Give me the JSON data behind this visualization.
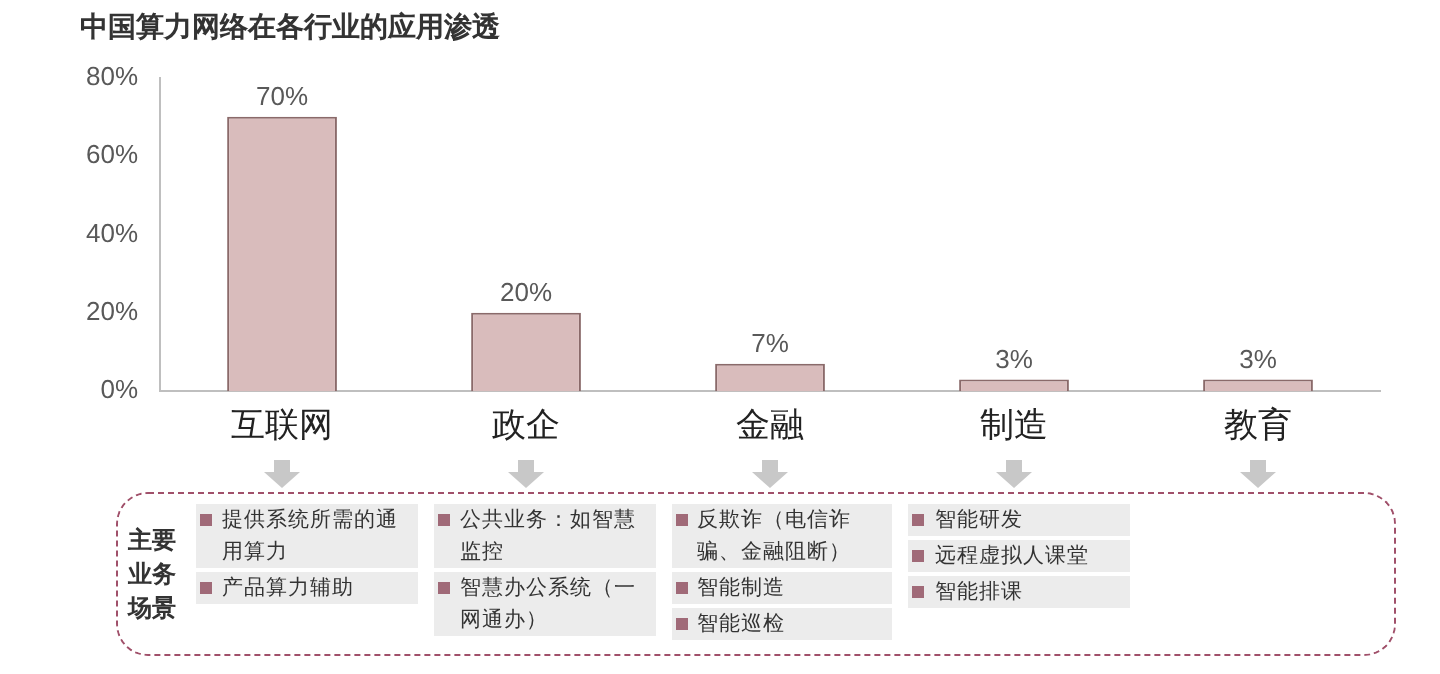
{
  "chart_data": {
    "type": "bar",
    "title": "中国算力网络在各行业的应用渗透",
    "categories": [
      "互联网",
      "政企",
      "金融",
      "制造",
      "教育"
    ],
    "values": [
      70,
      20,
      7,
      3,
      3
    ],
    "color": "#d9bcbc",
    "value_labels": [
      "70%",
      "20%",
      "7%",
      "3%",
      "3%"
    ],
    "ylim": [
      0,
      80
    ],
    "yticks": [
      {
        "value": 0,
        "label": "0%"
      },
      {
        "value": 20,
        "label": "20%"
      },
      {
        "value": 40,
        "label": "40%"
      },
      {
        "value": 60,
        "label": "60%"
      },
      {
        "value": 80,
        "label": "80%"
      }
    ],
    "grid": false,
    "legend": false,
    "annotations": [
      "主要业务场景",
      "提供系统所需的通用算力",
      "产品算力辅助",
      "公共业务：如智慧监控",
      "智慧办公系统（一网通办）",
      "反欺诈（电信诈骗、金融阻断）",
      "智能制造",
      "智能巡检",
      "智能研发",
      "远程虚拟人课堂",
      "智能排课"
    ]
  }
}
